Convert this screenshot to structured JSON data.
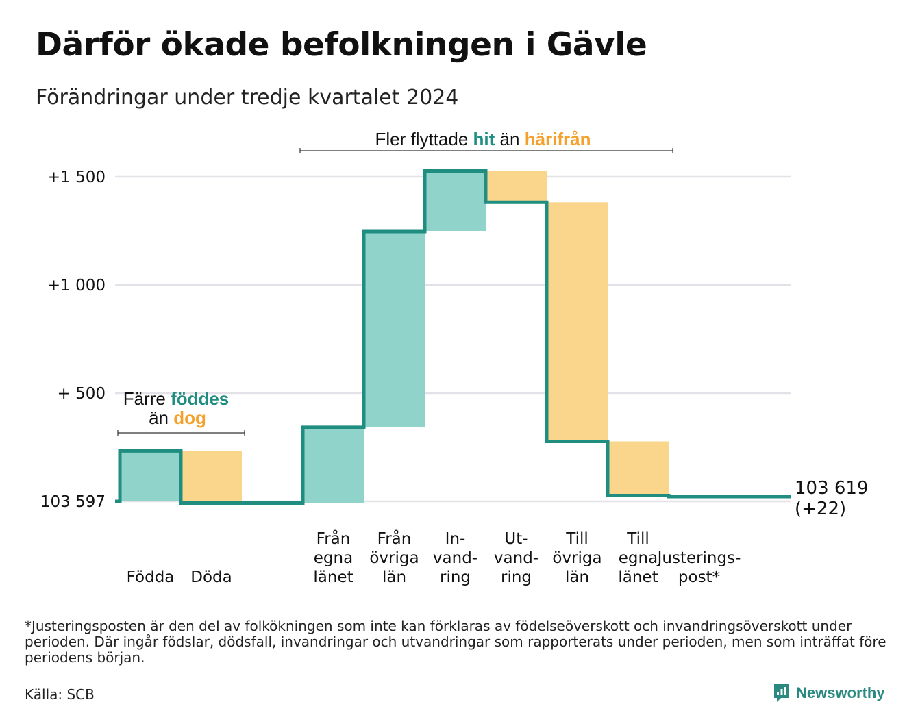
{
  "header": {
    "title": "Därför ökade befolkningen i Gävle",
    "subtitle": "Förändringar under tredje kvartalet 2024"
  },
  "chart_data": {
    "type": "waterfall",
    "baseline_value": 103597,
    "y_ticks": [
      {
        "value": 0,
        "label": "103 597"
      },
      {
        "value": 500,
        "label": "+  500"
      },
      {
        "value": 1000,
        "label": "+1 000"
      },
      {
        "value": 1500,
        "label": "+1 500"
      }
    ],
    "ylim": [
      0,
      1500
    ],
    "grid": true,
    "steps": [
      {
        "label": [
          "Födda"
        ],
        "delta": 233,
        "kind": "in"
      },
      {
        "label": [
          "Döda"
        ],
        "delta": -241,
        "kind": "out"
      },
      {
        "label": [
          ""
        ],
        "delta": 0,
        "kind": "none"
      },
      {
        "label": [
          "Från",
          "egna",
          "länet"
        ],
        "delta": 350,
        "kind": "in"
      },
      {
        "label": [
          "Från",
          "övriga",
          "län"
        ],
        "delta": 905,
        "kind": "in"
      },
      {
        "label": [
          "In-",
          "vand-",
          "ring"
        ],
        "delta": 280,
        "kind": "in"
      },
      {
        "label": [
          "Ut-",
          "vand-",
          "ring"
        ],
        "delta": -145,
        "kind": "out"
      },
      {
        "label": [
          "Till",
          "övriga",
          "län"
        ],
        "delta": -1105,
        "kind": "out"
      },
      {
        "label": [
          "Till",
          "egna",
          "länet"
        ],
        "delta": -250,
        "kind": "out"
      },
      {
        "label": [
          "Justerings-",
          "post*"
        ],
        "delta": -5,
        "kind": "none"
      }
    ],
    "end_label": [
      "103 619",
      "(+22)"
    ],
    "annotations": {
      "births": {
        "prefix": "Färre",
        "hl1": "föddes",
        "mid": "än",
        "hl2": "dog"
      },
      "migration": {
        "prefix": "Fler flyttade",
        "hl1": "hit",
        "mid": "än",
        "hl2": "härifrån"
      }
    },
    "colors": {
      "in": "#8fd3cb",
      "out": "#fad68c",
      "line": "#1f8d7f",
      "in_text": "#1f8d7f",
      "out_text": "#f5a02a",
      "grid": "#e2e2e8"
    }
  },
  "footnote": "*Justeringsposten är den del av folkökningen som inte kan förklaras av födelseöverskott och invandringsöverskott under perioden. Där ingår födslar, dödsfall, invandringar och utvandringar som rapporterats under perioden, men som inträffat före periodens början.",
  "source": "Källa: SCB",
  "brand": {
    "name": "Newsworthy",
    "icon": "newsworthy-logo-icon"
  }
}
